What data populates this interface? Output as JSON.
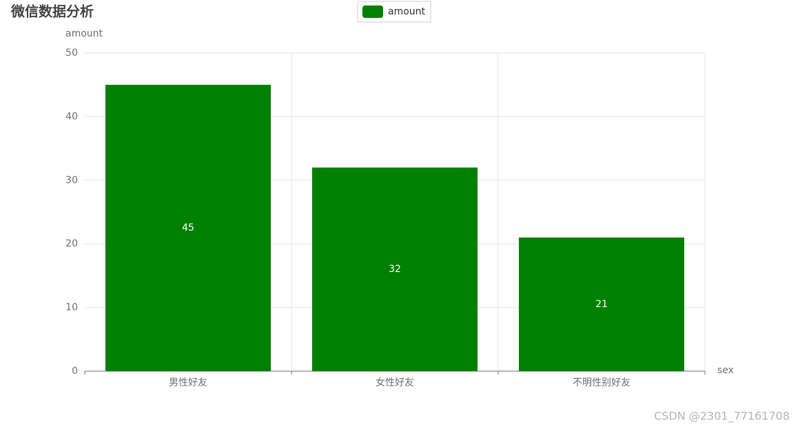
{
  "chart_data": {
    "type": "bar",
    "title": "微信数据分析",
    "x_label": "sex",
    "y_label": "amount",
    "categories": [
      "男性好友",
      "女性好友",
      "不明性别好友"
    ],
    "series": [
      {
        "name": "amount",
        "color": "#008000",
        "values": [
          45,
          32,
          21
        ]
      }
    ],
    "ylim": [
      0,
      50
    ],
    "yticks": [
      0,
      10,
      20,
      30,
      40,
      50
    ],
    "grid": true,
    "legend": "top",
    "watermark": "CSDN @2301_77161708"
  }
}
